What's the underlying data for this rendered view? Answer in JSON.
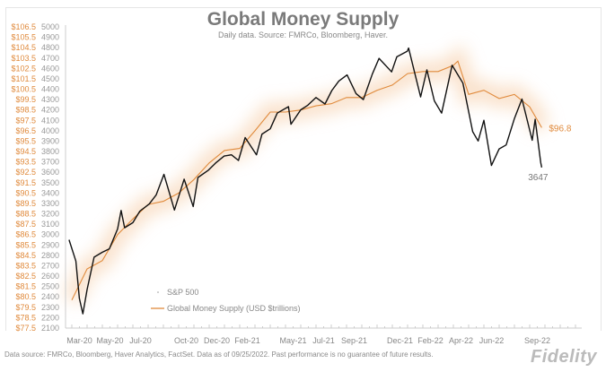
{
  "chart_data": {
    "type": "line",
    "title": "Global Money Supply",
    "subtitle": "Daily data.  Source: FMRCo, Bloomberg, Haver.",
    "x_tick_labels": [
      "Mar-20",
      "May-20",
      "Jul-20",
      "Oct-20",
      "Dec-20",
      "Feb-21",
      "May-21",
      "Jul-21",
      "Sep-21",
      "Dec-21",
      "Feb-22",
      "Apr-22",
      "Jun-22",
      "Sep-22"
    ],
    "y_left_sp500": {
      "range": [
        2100,
        5000
      ],
      "ticks": [
        2100,
        2200,
        2300,
        2400,
        2500,
        2600,
        2700,
        2800,
        2900,
        3000,
        3100,
        3200,
        3300,
        3400,
        3500,
        3600,
        3700,
        3800,
        3900,
        4000,
        4100,
        4200,
        4300,
        4400,
        4500,
        4600,
        4700,
        4800,
        4900,
        5000
      ]
    },
    "y_left_money": {
      "range": [
        77.5,
        106.5
      ],
      "tick_labels": [
        "$77.5",
        "$78.5",
        "$79.5",
        "$80.5",
        "$81.5",
        "$82.5",
        "$83.5",
        "$84.5",
        "$85.5",
        "$86.5",
        "$87.5",
        "$88.5",
        "$89.5",
        "$90.5",
        "$91.5",
        "$92.5",
        "$93.5",
        "$94.5",
        "$95.5",
        "$96.5",
        "$97.5",
        "$98.5",
        "$99.5",
        "$100.5",
        "$101.5",
        "$102.5",
        "$103.5",
        "$104.5",
        "$105.5",
        "$106.5"
      ]
    },
    "legend": {
      "placement": "bottom-left",
      "sp500": "S&P 500",
      "money": "Global Money Supply (USD $trillions)"
    },
    "annotations": {
      "sp500_last": "3647",
      "money_last": "$96.8"
    },
    "series": [
      {
        "name": "S&P 500",
        "color": "#111111",
        "points": [
          [
            "2020-02-26",
            2950
          ],
          [
            "2020-03-09",
            2746
          ],
          [
            "2020-03-16",
            2386
          ],
          [
            "2020-03-23",
            2237
          ],
          [
            "2020-04-01",
            2470
          ],
          [
            "2020-04-15",
            2783
          ],
          [
            "2020-05-01",
            2830
          ],
          [
            "2020-05-15",
            2863
          ],
          [
            "2020-06-01",
            3055
          ],
          [
            "2020-06-08",
            3232
          ],
          [
            "2020-06-15",
            3066
          ],
          [
            "2020-07-01",
            3115
          ],
          [
            "2020-07-15",
            3226
          ],
          [
            "2020-08-03",
            3294
          ],
          [
            "2020-08-17",
            3381
          ],
          [
            "2020-09-02",
            3580
          ],
          [
            "2020-09-23",
            3237
          ],
          [
            "2020-10-12",
            3534
          ],
          [
            "2020-10-30",
            3270
          ],
          [
            "2020-11-09",
            3550
          ],
          [
            "2020-11-30",
            3621
          ],
          [
            "2020-12-15",
            3694
          ],
          [
            "2020-12-31",
            3756
          ],
          [
            "2021-01-15",
            3768
          ],
          [
            "2021-01-29",
            3714
          ],
          [
            "2021-02-12",
            3934
          ],
          [
            "2021-03-04",
            3768
          ],
          [
            "2021-03-15",
            3968
          ],
          [
            "2021-04-01",
            4019
          ],
          [
            "2021-04-15",
            4170
          ],
          [
            "2021-05-07",
            4232
          ],
          [
            "2021-05-12",
            4063
          ],
          [
            "2021-06-01",
            4202
          ],
          [
            "2021-06-15",
            4246
          ],
          [
            "2021-07-01",
            4320
          ],
          [
            "2021-07-19",
            4258
          ],
          [
            "2021-08-02",
            4387
          ],
          [
            "2021-08-16",
            4479
          ],
          [
            "2021-09-02",
            4537
          ],
          [
            "2021-09-20",
            4358
          ],
          [
            "2021-10-04",
            4300
          ],
          [
            "2021-10-22",
            4545
          ],
          [
            "2021-11-05",
            4697
          ],
          [
            "2021-11-30",
            4567
          ],
          [
            "2021-12-10",
            4712
          ],
          [
            "2021-12-31",
            4766
          ],
          [
            "2022-01-03",
            4796
          ],
          [
            "2022-01-27",
            4326
          ],
          [
            "2022-02-09",
            4587
          ],
          [
            "2022-02-24",
            4288
          ],
          [
            "2022-03-08",
            4170
          ],
          [
            "2022-03-29",
            4631
          ],
          [
            "2022-04-20",
            4459
          ],
          [
            "2022-05-09",
            3991
          ],
          [
            "2022-05-20",
            3901
          ],
          [
            "2022-06-01",
            4101
          ],
          [
            "2022-06-16",
            3666
          ],
          [
            "2022-07-01",
            3825
          ],
          [
            "2022-07-15",
            3863
          ],
          [
            "2022-08-01",
            4118
          ],
          [
            "2022-08-16",
            4305
          ],
          [
            "2022-09-06",
            3908
          ],
          [
            "2022-09-12",
            4110
          ],
          [
            "2022-09-23",
            3693
          ],
          [
            "2022-09-25",
            3647
          ]
        ]
      },
      {
        "name": "Global Money Supply (USD $trillions)",
        "color": "#e08a3c",
        "points": [
          [
            "2020-03-01",
            80.2
          ],
          [
            "2020-04-01",
            83.2
          ],
          [
            "2020-05-01",
            84.0
          ],
          [
            "2020-06-01",
            86.5
          ],
          [
            "2020-07-01",
            88.0
          ],
          [
            "2020-08-01",
            89.4
          ],
          [
            "2020-09-01",
            89.7
          ],
          [
            "2020-10-01",
            90.5
          ],
          [
            "2020-11-01",
            91.8
          ],
          [
            "2020-12-01",
            93.4
          ],
          [
            "2021-01-01",
            94.6
          ],
          [
            "2021-02-01",
            94.8
          ],
          [
            "2021-03-01",
            96.5
          ],
          [
            "2021-04-01",
            98.3
          ],
          [
            "2021-05-01",
            98.3
          ],
          [
            "2021-06-01",
            98.5
          ],
          [
            "2021-07-01",
            98.9
          ],
          [
            "2021-08-01",
            99.1
          ],
          [
            "2021-09-01",
            99.7
          ],
          [
            "2021-10-01",
            99.7
          ],
          [
            "2021-11-01",
            100.4
          ],
          [
            "2021-12-01",
            100.9
          ],
          [
            "2022-01-01",
            102.0
          ],
          [
            "2022-02-01",
            102.2
          ],
          [
            "2022-03-01",
            102.2
          ],
          [
            "2022-04-01",
            102.8
          ],
          [
            "2022-04-10",
            103.2
          ],
          [
            "2022-05-01",
            100.0
          ],
          [
            "2022-06-01",
            100.4
          ],
          [
            "2022-07-01",
            99.6
          ],
          [
            "2022-08-01",
            100.0
          ],
          [
            "2022-09-01",
            98.8
          ],
          [
            "2022-09-25",
            96.8
          ]
        ]
      }
    ]
  },
  "footnote": "Data source: FMRCo, Bloomberg, Haver Analytics, FactSet. Data as of 09/25/2022. Past performance is no guarantee of future results.",
  "logo": "Fidelity",
  "colors": {
    "money": "#e08a3c",
    "sp500": "#111111",
    "axis": "#cccccc",
    "text": "#888888"
  }
}
